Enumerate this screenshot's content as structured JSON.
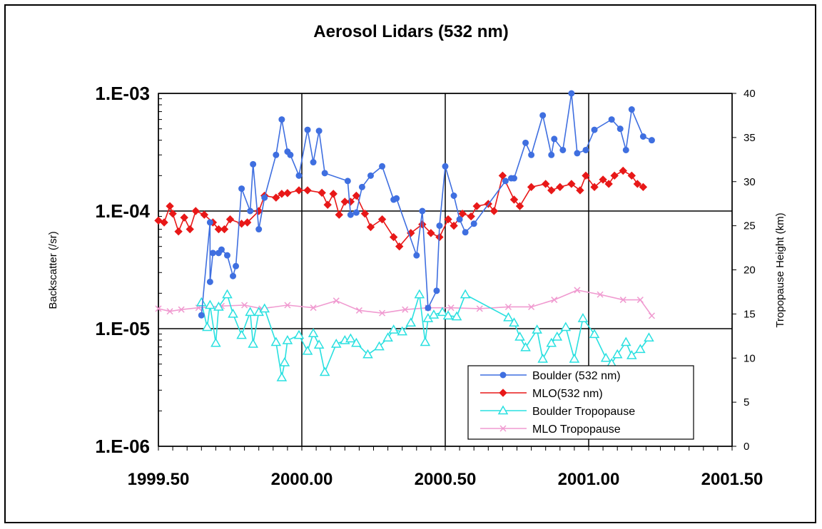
{
  "chart_data": {
    "type": "line",
    "title": "Aerosol Lidars (532 nm)",
    "xlabel": "",
    "ylabel": "Backscatter (/sr)",
    "y2label": "Tropopause Height (km)",
    "xlim": [
      1999.5,
      2001.5
    ],
    "ylim": [
      1e-06,
      0.001
    ],
    "y_scale": "log",
    "y2lim": [
      0,
      40
    ],
    "x_ticks": [
      "1999.50",
      "2000.00",
      "2000.50",
      "2001.00",
      "2001.50"
    ],
    "y_ticks": [
      "1.E-03",
      "1.E-04",
      "1.E-05",
      "1.E-06"
    ],
    "y2_ticks": [
      "0",
      "5",
      "10",
      "15",
      "20",
      "25",
      "30",
      "35",
      "40"
    ],
    "grid": true,
    "legend_position": "bottom-right",
    "series": [
      {
        "name": "Boulder (532 nm)",
        "axis": "left",
        "color": "#3f6fe0",
        "marker": "circle",
        "points": [
          [
            1999.65,
            1.3e-05
          ],
          [
            1999.68,
            8e-05
          ],
          [
            1999.68,
            2.5e-05
          ],
          [
            1999.69,
            4.4e-05
          ],
          [
            1999.71,
            4.4e-05
          ],
          [
            1999.72,
            4.7e-05
          ],
          [
            1999.74,
            4.2e-05
          ],
          [
            1999.76,
            2.8e-05
          ],
          [
            1999.77,
            3.4e-05
          ],
          [
            1999.79,
            0.000155
          ],
          [
            1999.82,
            0.0001
          ],
          [
            1999.83,
            0.00025
          ],
          [
            1999.85,
            7e-05
          ],
          [
            1999.87,
            0.00013
          ],
          [
            1999.91,
            0.0003
          ],
          [
            1999.93,
            0.0006
          ],
          [
            1999.95,
            0.00032
          ],
          [
            1999.96,
            0.0003
          ],
          [
            1999.99,
            0.0002
          ],
          [
            2000.02,
            0.00049
          ],
          [
            2000.04,
            0.00026
          ],
          [
            2000.06,
            0.00048
          ],
          [
            2000.08,
            0.00021
          ],
          [
            2000.16,
            0.00018
          ],
          [
            2000.17,
            9.3e-05
          ],
          [
            2000.19,
            9.7e-05
          ],
          [
            2000.21,
            0.00016
          ],
          [
            2000.24,
            0.0002
          ],
          [
            2000.28,
            0.00024
          ],
          [
            2000.32,
            0.000125
          ],
          [
            2000.33,
            0.000128
          ],
          [
            2000.4,
            4.2e-05
          ],
          [
            2000.42,
            0.0001
          ],
          [
            2000.44,
            1.5e-05
          ],
          [
            2000.47,
            2.1e-05
          ],
          [
            2000.48,
            7.5e-05
          ],
          [
            2000.5,
            0.00024
          ],
          [
            2000.53,
            0.000135
          ],
          [
            2000.55,
            8.5e-05
          ],
          [
            2000.57,
            6.6e-05
          ],
          [
            2000.6,
            7.8e-05
          ],
          [
            2000.71,
            0.00018
          ],
          [
            2000.73,
            0.00019
          ],
          [
            2000.74,
            0.00019
          ],
          [
            2000.78,
            0.00038
          ],
          [
            2000.8,
            0.0003
          ],
          [
            2000.84,
            0.00065
          ],
          [
            2000.87,
            0.0003
          ],
          [
            2000.88,
            0.00041
          ],
          [
            2000.91,
            0.00033
          ],
          [
            2000.94,
            0.001
          ],
          [
            2000.96,
            0.00031
          ],
          [
            2000.99,
            0.00033
          ],
          [
            2001.02,
            0.00049
          ],
          [
            2001.08,
            0.0006
          ],
          [
            2001.11,
            0.0005
          ],
          [
            2001.13,
            0.00033
          ],
          [
            2001.15,
            0.00073
          ],
          [
            2001.19,
            0.00043
          ],
          [
            2001.22,
            0.0004
          ]
        ]
      },
      {
        "name": "MLO(532 nm)",
        "axis": "left",
        "color": "#e81818",
        "marker": "diamond",
        "points": [
          [
            1999.5,
            8.3e-05
          ],
          [
            1999.52,
            8e-05
          ],
          [
            1999.54,
            0.00011
          ],
          [
            1999.55,
            9.5e-05
          ],
          [
            1999.57,
            6.7e-05
          ],
          [
            1999.59,
            8.8e-05
          ],
          [
            1999.61,
            7e-05
          ],
          [
            1999.63,
            0.0001
          ],
          [
            1999.66,
            9.3e-05
          ],
          [
            1999.69,
            8e-05
          ],
          [
            1999.71,
            7e-05
          ],
          [
            1999.73,
            7e-05
          ],
          [
            1999.75,
            8.5e-05
          ],
          [
            1999.79,
            7.8e-05
          ],
          [
            1999.81,
            8e-05
          ],
          [
            1999.85,
            0.0001
          ],
          [
            1999.87,
            0.000135
          ],
          [
            1999.91,
            0.00013
          ],
          [
            1999.93,
            0.00014
          ],
          [
            1999.95,
            0.000142
          ],
          [
            1999.99,
            0.00015
          ],
          [
            2000.02,
            0.00015
          ],
          [
            2000.07,
            0.000143
          ],
          [
            2000.09,
            0.000113
          ],
          [
            2000.11,
            0.00014
          ],
          [
            2000.13,
            9.3e-05
          ],
          [
            2000.15,
            0.00012
          ],
          [
            2000.17,
            0.00012
          ],
          [
            2000.19,
            0.000135
          ],
          [
            2000.22,
            9.5e-05
          ],
          [
            2000.24,
            7.3e-05
          ],
          [
            2000.28,
            8.5e-05
          ],
          [
            2000.32,
            6e-05
          ],
          [
            2000.34,
            5e-05
          ],
          [
            2000.38,
            6.5e-05
          ],
          [
            2000.42,
            7.7e-05
          ],
          [
            2000.45,
            6.5e-05
          ],
          [
            2000.48,
            6e-05
          ],
          [
            2000.51,
            8.5e-05
          ],
          [
            2000.53,
            7.5e-05
          ],
          [
            2000.56,
            9.5e-05
          ],
          [
            2000.59,
            9e-05
          ],
          [
            2000.61,
            0.00011
          ],
          [
            2000.65,
            0.000115
          ],
          [
            2000.67,
            0.0001
          ],
          [
            2000.7,
            0.0002
          ],
          [
            2000.74,
            0.000125
          ],
          [
            2000.76,
            0.00011
          ],
          [
            2000.8,
            0.00016
          ],
          [
            2000.85,
            0.00017
          ],
          [
            2000.87,
            0.00015
          ],
          [
            2000.9,
            0.00016
          ],
          [
            2000.94,
            0.00017
          ],
          [
            2000.97,
            0.00015
          ],
          [
            2000.99,
            0.0002
          ],
          [
            2001.02,
            0.00016
          ],
          [
            2001.05,
            0.000185
          ],
          [
            2001.07,
            0.00017
          ],
          [
            2001.09,
            0.0002
          ],
          [
            2001.12,
            0.00022
          ],
          [
            2001.15,
            0.0002
          ],
          [
            2001.17,
            0.00017
          ],
          [
            2001.19,
            0.00016
          ]
        ]
      },
      {
        "name": "Boulder Tropopause",
        "axis": "right",
        "color": "#29e0e0",
        "marker": "triangle",
        "points": [
          [
            1999.65,
            16.3
          ],
          [
            1999.67,
            13.5
          ],
          [
            1999.68,
            16.0
          ],
          [
            1999.7,
            11.7
          ],
          [
            1999.71,
            15.8
          ],
          [
            1999.74,
            17.2
          ],
          [
            1999.76,
            15.0
          ],
          [
            1999.79,
            12.6
          ],
          [
            1999.82,
            15.2
          ],
          [
            1999.83,
            11.6
          ],
          [
            1999.85,
            15.2
          ],
          [
            1999.87,
            15.6
          ],
          [
            1999.91,
            11.8
          ],
          [
            1999.93,
            7.8
          ],
          [
            1999.94,
            9.5
          ],
          [
            1999.95,
            12.0
          ],
          [
            1999.99,
            12.6
          ],
          [
            2000.02,
            10.8
          ],
          [
            2000.04,
            12.8
          ],
          [
            2000.06,
            11.5
          ],
          [
            2000.08,
            8.4
          ],
          [
            2000.12,
            11.6
          ],
          [
            2000.15,
            12.0
          ],
          [
            2000.17,
            12.2
          ],
          [
            2000.19,
            11.7
          ],
          [
            2000.23,
            10.4
          ],
          [
            2000.27,
            11.3
          ],
          [
            2000.3,
            12.3
          ],
          [
            2000.32,
            13.2
          ],
          [
            2000.35,
            13.0
          ],
          [
            2000.38,
            14.0
          ],
          [
            2000.41,
            17.2
          ],
          [
            2000.43,
            11.8
          ],
          [
            2000.44,
            14.5
          ],
          [
            2000.46,
            14.9
          ],
          [
            2000.49,
            15.2
          ],
          [
            2000.51,
            14.8
          ],
          [
            2000.54,
            14.7
          ],
          [
            2000.57,
            17.2
          ],
          [
            2000.72,
            14.6
          ],
          [
            2000.74,
            14.0
          ],
          [
            2000.76,
            12.4
          ],
          [
            2000.78,
            11.2
          ],
          [
            2000.82,
            13.2
          ],
          [
            2000.84,
            9.9
          ],
          [
            2000.87,
            11.7
          ],
          [
            2000.89,
            12.4
          ],
          [
            2000.92,
            13.5
          ],
          [
            2000.95,
            9.9
          ],
          [
            2000.98,
            14.5
          ],
          [
            2001.02,
            12.7
          ],
          [
            2001.06,
            10.0
          ],
          [
            2001.08,
            9.4
          ],
          [
            2001.1,
            10.4
          ],
          [
            2001.13,
            11.8
          ],
          [
            2001.15,
            10.3
          ],
          [
            2001.18,
            11.0
          ],
          [
            2001.21,
            12.3
          ]
        ]
      },
      {
        "name": "MLO Tropopause",
        "axis": "right",
        "color": "#f09ad0",
        "marker": "x",
        "points": [
          [
            1999.5,
            15.6
          ],
          [
            1999.54,
            15.3
          ],
          [
            1999.58,
            15.5
          ],
          [
            1999.64,
            15.7
          ],
          [
            1999.72,
            15.9
          ],
          [
            1999.8,
            16.0
          ],
          [
            1999.86,
            15.6
          ],
          [
            1999.95,
            16.0
          ],
          [
            2000.04,
            15.7
          ],
          [
            2000.12,
            16.5
          ],
          [
            2000.2,
            15.4
          ],
          [
            2000.28,
            15.1
          ],
          [
            2000.36,
            15.5
          ],
          [
            2000.44,
            15.7
          ],
          [
            2000.52,
            15.7
          ],
          [
            2000.62,
            15.6
          ],
          [
            2000.72,
            15.8
          ],
          [
            2000.8,
            15.8
          ],
          [
            2000.88,
            16.6
          ],
          [
            2000.96,
            17.7
          ],
          [
            2001.04,
            17.2
          ],
          [
            2001.12,
            16.6
          ],
          [
            2001.18,
            16.6
          ],
          [
            2001.22,
            14.8
          ]
        ]
      }
    ]
  }
}
